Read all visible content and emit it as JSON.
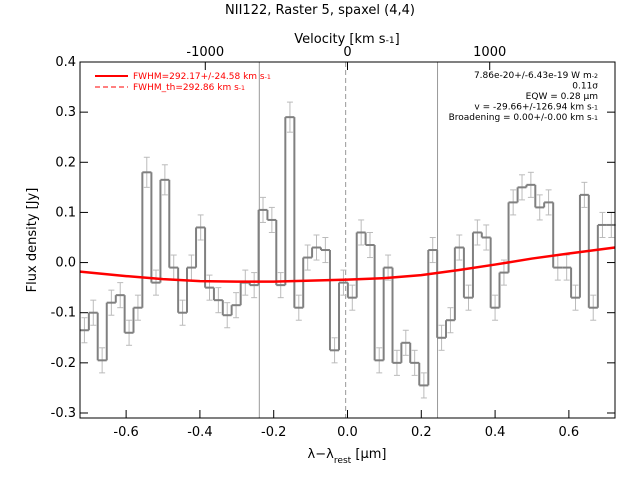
{
  "chart_data": {
    "type": "step",
    "title": "NII122, Raster 5, spaxel (4,4)",
    "x_label": {
      "parts": [
        "λ−λ",
        "rest",
        " [μm]"
      ],
      "shift": "sub"
    },
    "y_label": "Flux density [Jy]",
    "x2_label": {
      "parts": [
        "Velocity [km s",
        "-1",
        "]"
      ],
      "shift": "sup"
    },
    "xlim": [
      -0.725,
      0.725
    ],
    "ylim": [
      -0.31,
      0.4
    ],
    "x2lim": [
      -1881,
      1881
    ],
    "xticks": [
      -0.6,
      -0.4,
      -0.2,
      {
        "value": 0,
        "label": "0.0"
      },
      0.2,
      0.4,
      0.6
    ],
    "yticks": [
      -0.3,
      -0.2,
      -0.1,
      {
        "value": 0,
        "label": "0.0"
      },
      0.1,
      0.2,
      0.3,
      0.4
    ],
    "x2ticks": [
      -1000,
      0,
      1000
    ],
    "x": [
      -0.713,
      -0.689,
      -0.665,
      -0.64,
      -0.616,
      -0.592,
      -0.568,
      -0.544,
      -0.519,
      -0.495,
      -0.471,
      -0.447,
      -0.423,
      -0.398,
      -0.374,
      -0.35,
      -0.326,
      -0.302,
      -0.277,
      -0.253,
      -0.229,
      -0.205,
      -0.181,
      -0.156,
      -0.132,
      -0.108,
      -0.084,
      -0.06,
      -0.035,
      -0.011,
      0.013,
      0.037,
      0.061,
      0.086,
      0.11,
      0.134,
      0.158,
      0.182,
      0.207,
      0.231,
      0.255,
      0.279,
      0.303,
      0.328,
      0.352,
      0.376,
      0.4,
      0.424,
      0.449,
      0.473,
      0.497,
      0.521,
      0.545,
      0.57,
      0.594,
      0.618,
      0.642,
      0.666,
      0.691,
      0.715
    ],
    "series": [
      {
        "name": "spectrum",
        "color": "#808080",
        "values": [
          -0.135,
          -0.1,
          -0.195,
          -0.08,
          -0.065,
          -0.14,
          -0.09,
          0.18,
          -0.04,
          0.165,
          -0.01,
          -0.1,
          -0.01,
          0.07,
          -0.05,
          -0.075,
          -0.105,
          -0.085,
          -0.04,
          -0.045,
          0.105,
          0.085,
          -0.045,
          0.29,
          -0.09,
          0.01,
          0.03,
          0.025,
          -0.175,
          -0.04,
          -0.07,
          0.06,
          0.035,
          -0.195,
          -0.01,
          -0.2,
          -0.16,
          -0.2,
          -0.245,
          0.025,
          -0.15,
          -0.115,
          0.03,
          -0.07,
          0.06,
          0.05,
          -0.09,
          -0.02,
          0.12,
          0.15,
          0.155,
          0.11,
          0.12,
          -0.01,
          -0.01,
          -0.07,
          0.135,
          -0.09,
          0.075,
          0.075
        ],
        "errors": [
          0.025,
          0.025,
          0.025,
          0.025,
          0.025,
          0.025,
          0.025,
          0.03,
          0.025,
          0.03,
          0.025,
          0.025,
          0.025,
          0.025,
          0.025,
          0.025,
          0.025,
          0.025,
          0.025,
          0.025,
          0.025,
          0.025,
          0.025,
          0.03,
          0.025,
          0.025,
          0.025,
          0.025,
          0.025,
          0.025,
          0.025,
          0.025,
          0.025,
          0.025,
          0.025,
          0.025,
          0.025,
          0.025,
          0.025,
          0.025,
          0.025,
          0.025,
          0.025,
          0.025,
          0.025,
          0.025,
          0.025,
          0.025,
          0.025,
          0.025,
          0.025,
          0.025,
          0.025,
          0.025,
          0.025,
          0.025,
          0.025,
          0.025,
          0.025,
          0.025
        ]
      }
    ],
    "fit": {
      "color": "#ff0000",
      "x": [
        -0.725,
        -0.6,
        -0.5,
        -0.4,
        -0.3,
        -0.2,
        -0.1,
        0,
        0.1,
        0.2,
        0.3,
        0.4,
        0.5,
        0.6,
        0.725
      ],
      "values": [
        -0.018,
        -0.027,
        -0.033,
        -0.037,
        -0.038,
        -0.038,
        -0.036,
        -0.034,
        -0.031,
        -0.025,
        -0.015,
        -0.004,
        0.008,
        0.018,
        0.03
      ]
    },
    "vlines": [
      {
        "x": -0.239,
        "style": "solid"
      },
      {
        "x": -0.005,
        "style": "dashed"
      },
      {
        "x": 0.244,
        "style": "solid"
      }
    ],
    "legend": [
      {
        "parts": [
          "FWHM=292.17+/-24.58 km s",
          "-1"
        ],
        "shift": "sup",
        "style": "solid"
      },
      {
        "parts": [
          "FWHM_th=292.86 km s",
          "-1"
        ],
        "shift": "sup",
        "style": "dashed"
      }
    ],
    "annotations": [
      {
        "parts": [
          "7.86e-20+/-6.43e-19 W m",
          "-2"
        ],
        "shift": "sup"
      },
      {
        "parts": [
          "0.11σ"
        ],
        "shift": "sup"
      },
      {
        "parts": [
          "EQW = 0.28 μm"
        ],
        "shift": "sup"
      },
      {
        "parts": [
          "v = -29.66+/-126.94 km s",
          "-1"
        ],
        "shift": "sup"
      },
      {
        "parts": [
          "Broadening = 0.00+/-0.00 km s",
          "-1"
        ],
        "shift": "sup"
      }
    ]
  }
}
